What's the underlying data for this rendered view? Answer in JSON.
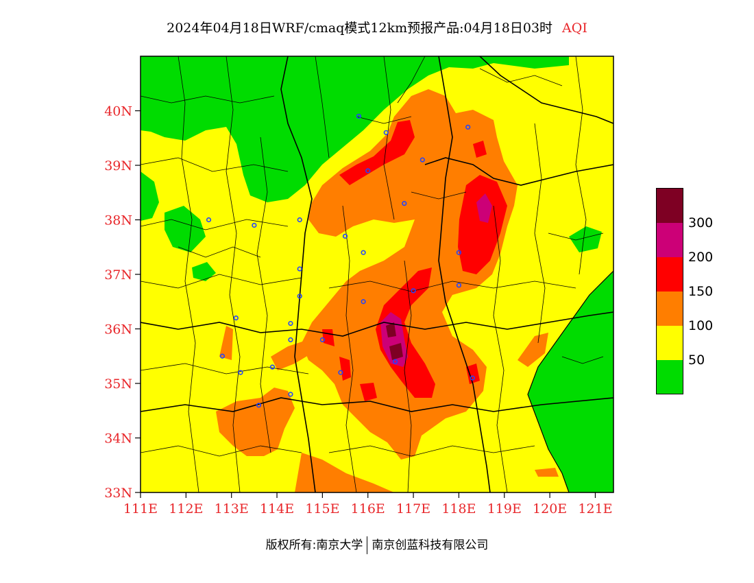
{
  "title": {
    "text": "2024年04月18日WRF/cmaq模式12km预报产品:04月18日03时",
    "variable": "AQI"
  },
  "map": {
    "lon_range": [
      111,
      121.4
    ],
    "lat_range": [
      33,
      41
    ],
    "lat_ticks": [
      "33N",
      "34N",
      "35N",
      "36N",
      "37N",
      "38N",
      "39N",
      "40N"
    ],
    "lon_ticks": [
      "111E",
      "112E",
      "113E",
      "114E",
      "115E",
      "116E",
      "117E",
      "118E",
      "119E",
      "120E",
      "121E"
    ],
    "colors": {
      "good": "#00dc00",
      "moderate": "#ffff00",
      "unhealthy_sensitive": "#ff7e00",
      "unhealthy": "#ff0000",
      "very_unhealthy": "#cc0077",
      "hazardous": "#7e0023",
      "station": "#2244ff"
    }
  },
  "legend": {
    "labels": [
      "300",
      "200",
      "150",
      "100",
      "50"
    ],
    "colors": [
      "#7e0023",
      "#cc0077",
      "#ff0000",
      "#ff7e00",
      "#ffff00",
      "#00dc00"
    ]
  },
  "footer": {
    "left": "版权所有:南京大学",
    "right": "南京创蓝科技有限公司"
  }
}
